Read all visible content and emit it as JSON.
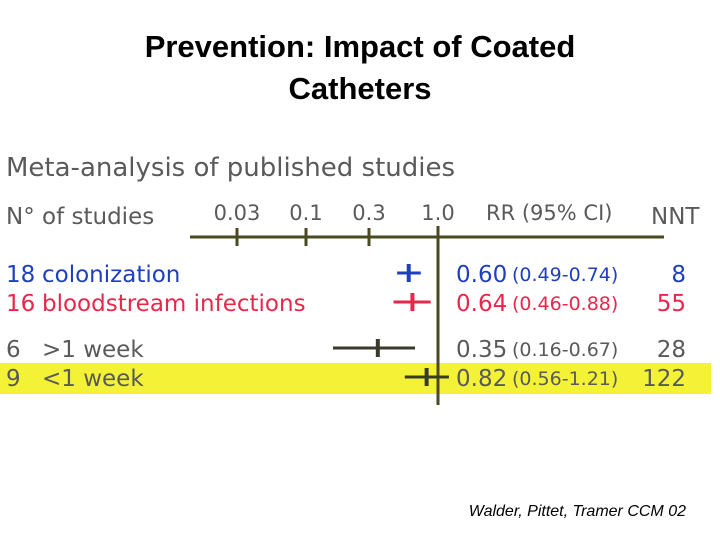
{
  "title_lines": [
    "Prevention: Impact of Coated",
    "Catheters"
  ],
  "citation": "Walder, Pittet, Tramer CCM 02",
  "colors": {
    "heading": "#5a5a5a",
    "axis": "#4a4a22",
    "blue": "#1f3fbf",
    "red": "#e8274b",
    "gray_text": "#5a5a5a",
    "highlight": "#f4f236"
  },
  "chart_data": {
    "type": "forest",
    "title": "Meta-analysis of published studies",
    "x_scale": "log",
    "x_ticks": [
      {
        "value": 0.03,
        "label": "0.03"
      },
      {
        "value": 0.1,
        "label": "0.1"
      },
      {
        "value": 0.3,
        "label": "0.3"
      },
      {
        "value": 1.0,
        "label": "1.0"
      }
    ],
    "reference_value": 1.0,
    "columns": {
      "studies": "N° of studies",
      "rr": "RR (95% CI)",
      "nnt": "NNT"
    },
    "rows": [
      {
        "n": "18",
        "label": "colonization",
        "rr": 0.6,
        "rr_label": "0.60",
        "ci_low": 0.49,
        "ci_high": 0.74,
        "ci_label": "(0.49-0.74)",
        "nnt": "8",
        "color": "blue",
        "highlight": false
      },
      {
        "n": "16",
        "label": "bloodstream infections",
        "rr": 0.64,
        "rr_label": "0.64",
        "ci_low": 0.46,
        "ci_high": 0.88,
        "ci_label": "(0.46-0.88)",
        "nnt": "55",
        "color": "red",
        "highlight": false
      },
      {
        "n": "6",
        "label": ">1 week",
        "rr": 0.35,
        "rr_label": "0.35",
        "ci_low": 0.16,
        "ci_high": 0.67,
        "ci_label": "(0.16-0.67)",
        "nnt": "28",
        "color": "gray",
        "highlight": false
      },
      {
        "n": "9",
        "label": "<1 week",
        "rr": 0.82,
        "rr_label": "0.82",
        "ci_low": 0.56,
        "ci_high": 1.21,
        "ci_label": "(0.56-1.21)",
        "nnt": "122",
        "color": "gray",
        "highlight": true
      }
    ]
  }
}
